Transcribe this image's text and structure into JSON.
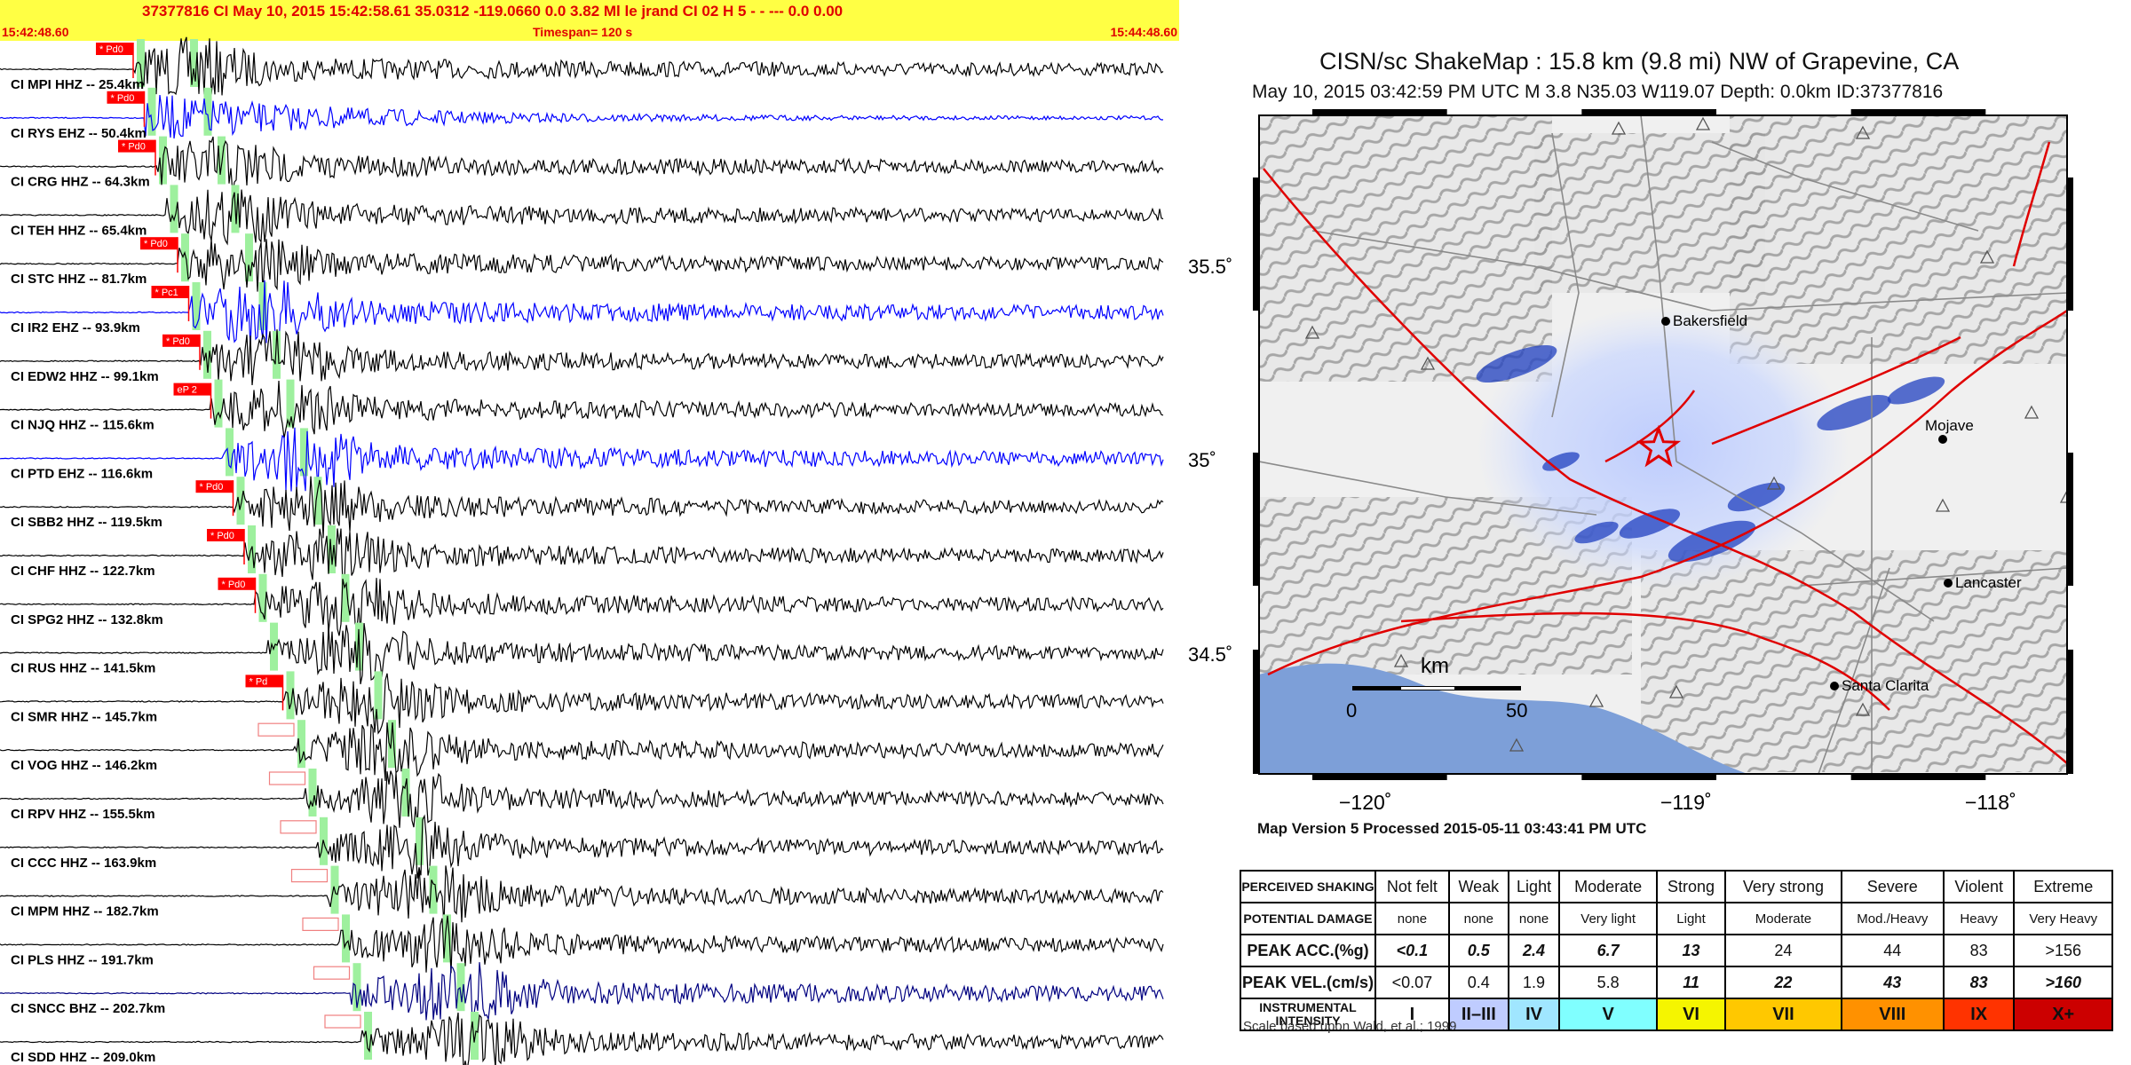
{
  "seismogram": {
    "header_line": "37377816 CI May 10, 2015 15:42:58.61   35.0312 -119.0660  0.0 3.82 Ml le    jrand    CI 02 H    5   -  - ---   0.0 0.00",
    "start_time": "15:42:48.60",
    "end_time": "15:44:48.60",
    "timespan": "Timespan= 120 s",
    "stations": [
      {
        "label": "CI MPI HHZ -- 25.4km",
        "pick": "* Pd0",
        "color": "#000000"
      },
      {
        "label": "CI RYS EHZ -- 50.4km",
        "pick": "* Pd0",
        "color": "#0000ff"
      },
      {
        "label": "CI CRG HHZ -- 64.3km",
        "pick": "* Pd0",
        "color": "#000000"
      },
      {
        "label": "CI TEH HHZ -- 65.4km",
        "pick": "",
        "color": "#000000"
      },
      {
        "label": "CI STC HHZ -- 81.7km",
        "pick": "* Pd0",
        "color": "#000000"
      },
      {
        "label": "CI IR2 EHZ -- 93.9km",
        "pick": "* Pc1",
        "color": "#0000ff"
      },
      {
        "label": "CI EDW2 HHZ -- 99.1km",
        "pick": "* Pd0",
        "color": "#000000"
      },
      {
        "label": "CI NJQ HHZ -- 115.6km",
        "pick": "eP 2",
        "color": "#000000"
      },
      {
        "label": "CI PTD EHZ -- 116.6km",
        "pick": "",
        "color": "#0000ff"
      },
      {
        "label": "CI SBB2 HHZ -- 119.5km",
        "pick": "* Pd0",
        "color": "#000000"
      },
      {
        "label": "CI CHF HHZ -- 122.7km",
        "pick": "* Pd0",
        "color": "#000000"
      },
      {
        "label": "CI SPG2 HHZ -- 132.8km",
        "pick": "* Pd0",
        "color": "#000000"
      },
      {
        "label": "CI RUS HHZ -- 141.5km",
        "pick": "",
        "color": "#000000"
      },
      {
        "label": "CI SMR HHZ -- 145.7km",
        "pick": "* Pd",
        "color": "#000000"
      },
      {
        "label": "CI VOG HHZ -- 146.2km",
        "pick": "",
        "color": "#000000"
      },
      {
        "label": "CI RPV HHZ -- 155.5km",
        "pick": "",
        "color": "#000000"
      },
      {
        "label": "CI CCC HHZ -- 163.9km",
        "pick": "",
        "color": "#000000"
      },
      {
        "label": "CI MPM HHZ -- 182.7km",
        "pick": "",
        "color": "#000000"
      },
      {
        "label": "CI PLS HHZ -- 191.7km",
        "pick": "",
        "color": "#000000"
      },
      {
        "label": "CI SNCC BHZ -- 202.7km",
        "pick": "",
        "color": "#000080"
      },
      {
        "label": "CI SDD HHZ -- 209.0km",
        "pick": "",
        "color": "#000000"
      }
    ]
  },
  "shakemap": {
    "title": "CISN/sc ShakeMap : 15.8 km (9.8 mi) NW of Grapevine, CA",
    "subtitle": "May 10, 2015 03:42:59 PM UTC   M 3.8   N35.03 W119.07   Depth: 0.0km   ID:37377816",
    "lat_ticks": [
      "35.5˚",
      "35˚",
      "34.5˚"
    ],
    "lon_ticks": [
      "−120˚",
      "−119˚",
      "−118˚"
    ],
    "cities": [
      "Bakersfield",
      "Mojave",
      "Lancaster",
      "Santa Clarita"
    ],
    "scalebar": {
      "unit": "km",
      "zero": "0",
      "fifty": "50"
    },
    "map_version": "Map Version 5 Processed 2015-05-11 03:43:41 PM UTC",
    "colors": {
      "ocean": "#7d9fd8",
      "fault": "#e00000",
      "intensity_blue": "#2040c0",
      "epicenter": "#e00000"
    }
  },
  "legend": {
    "row_labels": {
      "shaking": "PERCEIVED SHAKING",
      "damage": "POTENTIAL DAMAGE",
      "acc": "PEAK ACC.(%g)",
      "vel": "PEAK VEL.(cm/s)",
      "intensity": "INSTRUMENTAL INTENSITY"
    },
    "shaking": [
      "Not felt",
      "Weak",
      "Light",
      "Moderate",
      "Strong",
      "Very strong",
      "Severe",
      "Violent",
      "Extreme"
    ],
    "damage": [
      "none",
      "none",
      "none",
      "Very light",
      "Light",
      "Moderate",
      "Mod./Heavy",
      "Heavy",
      "Very Heavy"
    ],
    "acc": [
      "<0.1",
      "0.5",
      "2.4",
      "6.7",
      "13",
      "24",
      "44",
      "83",
      ">156"
    ],
    "vel": [
      "<0.07",
      "0.4",
      "1.9",
      "5.8",
      "11",
      "22",
      "43",
      "83",
      ">160"
    ],
    "intensity": [
      "I",
      "II–III",
      "IV",
      "V",
      "VI",
      "VII",
      "VIII",
      "IX",
      "X+"
    ],
    "intensity_colors": [
      "#ffffff",
      "#bfccff",
      "#a0e6ff",
      "#80ffff",
      "#f5f500",
      "#ffc800",
      "#ff9100",
      "#ff3300",
      "#cc0000"
    ],
    "footnote": "Scale based upon Wald, et al.; 1999"
  }
}
